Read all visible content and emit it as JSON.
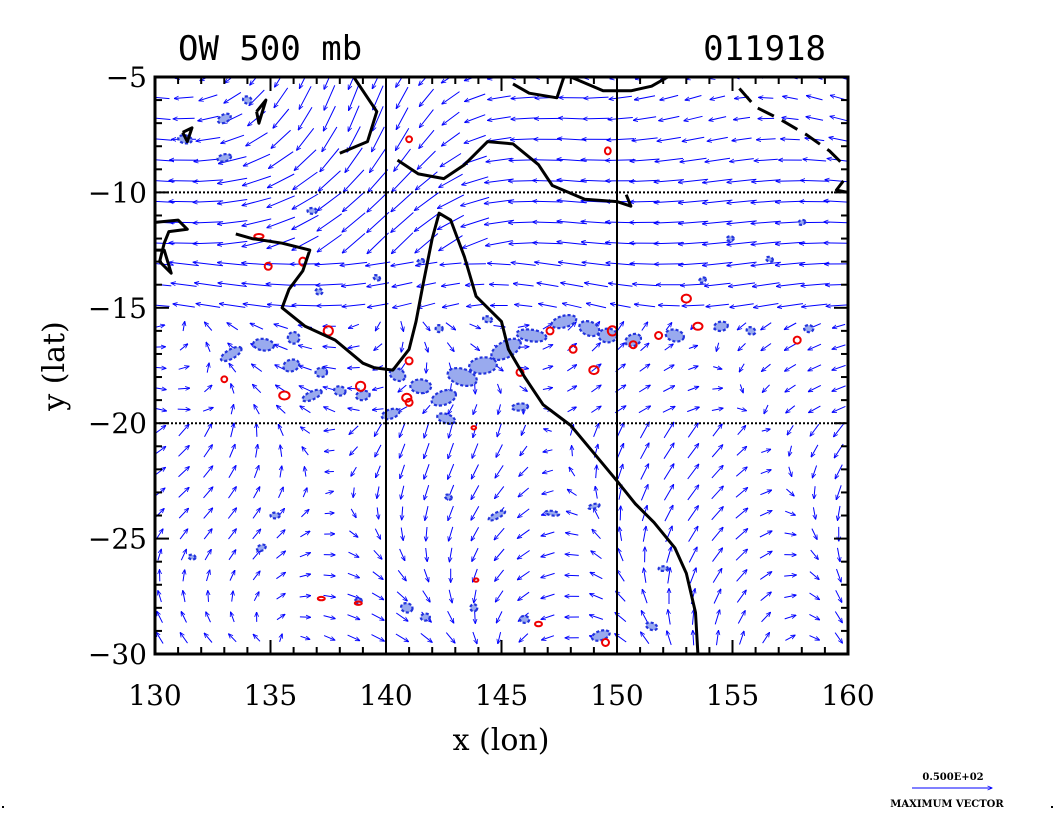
{
  "chart_data": {
    "type": "vector-contour-map",
    "title_left": "OW 500 mb",
    "title_right": "011918",
    "xlabel": "x (lon)",
    "ylabel": "y (lat)",
    "xlim": [
      130,
      160
    ],
    "ylim": [
      -30,
      -5
    ],
    "x_ticks": [
      130,
      135,
      140,
      145,
      150,
      155,
      160
    ],
    "y_ticks": [
      -5,
      -10,
      -15,
      -20,
      -25,
      -30
    ],
    "x_tick_labels": [
      "130",
      "135",
      "140",
      "145",
      "150",
      "155",
      "160"
    ],
    "y_tick_labels": [
      "−5",
      "−10",
      "−15",
      "−20",
      "−25",
      "−30"
    ],
    "grid_lines_x": [
      140,
      150
    ],
    "grid_lines_y": [
      -10,
      -20
    ],
    "legend": {
      "value_label": "0.500E+02",
      "label": "MAXIMUM VECTOR"
    },
    "colors": {
      "vectors": "#0000ff",
      "negative_contours": "#2233dd",
      "negative_fill": "#99aaee",
      "positive_contours": "#ee0000",
      "coast": "#000000"
    },
    "coastlines": [
      [
        [
          133.5,
          -11.8
        ],
        [
          134.2,
          -12.0
        ],
        [
          135.5,
          -12.2
        ],
        [
          136.7,
          -12.5
        ],
        [
          136.4,
          -13.4
        ],
        [
          135.8,
          -14.2
        ],
        [
          135.5,
          -15.0
        ],
        [
          136.5,
          -15.8
        ],
        [
          137.8,
          -16.4
        ],
        [
          139.0,
          -17.4
        ],
        [
          139.5,
          -17.6
        ],
        [
          140.3,
          -17.7
        ],
        [
          141.0,
          -16.8
        ],
        [
          141.3,
          -15.6
        ],
        [
          141.6,
          -14.0
        ],
        [
          142.0,
          -12.0
        ],
        [
          142.3,
          -10.9
        ],
        [
          142.8,
          -11.2
        ],
        [
          143.4,
          -12.8
        ],
        [
          143.9,
          -14.5
        ],
        [
          145.0,
          -15.6
        ],
        [
          145.3,
          -16.8
        ],
        [
          146.0,
          -18.0
        ],
        [
          146.8,
          -19.2
        ],
        [
          148.0,
          -20.1
        ],
        [
          149.0,
          -21.3
        ],
        [
          150.0,
          -22.5
        ],
        [
          150.8,
          -23.5
        ],
        [
          151.6,
          -24.3
        ],
        [
          152.5,
          -25.4
        ],
        [
          153.0,
          -26.5
        ],
        [
          153.4,
          -28.2
        ],
        [
          153.5,
          -30.0
        ]
      ],
      [
        [
          138.0,
          -8.3
        ],
        [
          139.2,
          -7.8
        ],
        [
          139.6,
          -6.5
        ],
        [
          138.6,
          -5.0
        ]
      ],
      [
        [
          140.5,
          -8.6
        ],
        [
          141.4,
          -9.2
        ],
        [
          142.5,
          -9.4
        ],
        [
          143.4,
          -8.8
        ],
        [
          144.4,
          -7.8
        ],
        [
          145.5,
          -7.9
        ],
        [
          146.6,
          -8.8
        ],
        [
          147.2,
          -9.7
        ],
        [
          148.6,
          -10.3
        ],
        [
          150.0,
          -10.4
        ],
        [
          150.6,
          -10.6
        ],
        [
          150.4,
          -10.1
        ]
      ],
      [
        [
          145.5,
          -5.3
        ],
        [
          146.2,
          -5.7
        ],
        [
          147.4,
          -5.9
        ],
        [
          147.7,
          -5.0
        ]
      ],
      [
        [
          148.0,
          -5.0
        ],
        [
          149.4,
          -5.6
        ],
        [
          150.6,
          -5.6
        ],
        [
          151.5,
          -5.4
        ],
        [
          152.2,
          -5.0
        ]
      ],
      [
        [
          130.0,
          -11.3
        ],
        [
          131.0,
          -11.2
        ],
        [
          131.4,
          -11.6
        ],
        [
          130.6,
          -11.7
        ],
        [
          130.4,
          -12.2
        ],
        [
          130.2,
          -13.0
        ],
        [
          130.7,
          -13.5
        ],
        [
          130.4,
          -12.5
        ],
        [
          130.0,
          -12.5
        ]
      ],
      [
        [
          134.4,
          -6.5
        ],
        [
          134.8,
          -6.0
        ],
        [
          134.5,
          -7.0
        ],
        [
          134.4,
          -6.5
        ]
      ],
      [
        [
          131.2,
          -7.4
        ],
        [
          131.6,
          -7.2
        ],
        [
          131.4,
          -7.8
        ],
        [
          131.2,
          -7.4
        ]
      ],
      [
        [
          159.8,
          -9.5
        ],
        [
          159.5,
          -9.9
        ],
        [
          160.0,
          -10.0
        ]
      ]
    ],
    "dashed_coastlines": [
      [
        [
          155.3,
          -5.5
        ],
        [
          156.0,
          -6.3
        ],
        [
          157.0,
          -6.8
        ],
        [
          158.2,
          -7.5
        ],
        [
          159.2,
          -8.2
        ],
        [
          159.8,
          -8.8
        ]
      ]
    ],
    "vorticity_blobs_negative": [
      [
        133.3,
        -17.0,
        1.0,
        0.4
      ],
      [
        134.7,
        -16.6,
        0.9,
        0.5
      ],
      [
        135.9,
        -17.5,
        0.7,
        0.5
      ],
      [
        136.0,
        -16.3,
        0.5,
        0.5
      ],
      [
        137.2,
        -17.8,
        0.5,
        0.4
      ],
      [
        136.8,
        -18.8,
        0.9,
        0.35
      ],
      [
        138.0,
        -18.6,
        0.5,
        0.4
      ],
      [
        139.0,
        -18.8,
        0.6,
        0.4
      ],
      [
        140.5,
        -17.9,
        0.7,
        0.5
      ],
      [
        141.5,
        -18.4,
        0.9,
        0.6
      ],
      [
        142.5,
        -18.9,
        1.1,
        0.6
      ],
      [
        143.3,
        -18.0,
        1.3,
        0.7
      ],
      [
        144.2,
        -17.5,
        1.2,
        0.7
      ],
      [
        145.2,
        -16.8,
        1.4,
        0.7
      ],
      [
        146.3,
        -16.2,
        1.3,
        0.5
      ],
      [
        147.7,
        -15.6,
        1.1,
        0.5
      ],
      [
        148.8,
        -15.9,
        0.9,
        0.6
      ],
      [
        149.6,
        -16.2,
        0.8,
        0.6
      ],
      [
        150.7,
        -16.4,
        0.7,
        0.5
      ],
      [
        152.5,
        -16.2,
        0.8,
        0.5
      ],
      [
        154.5,
        -15.8,
        0.6,
        0.4
      ],
      [
        155.8,
        -16.0,
        0.4,
        0.3
      ],
      [
        158.3,
        -15.9,
        0.4,
        0.3
      ],
      [
        140.2,
        -19.6,
        0.8,
        0.4
      ],
      [
        142.6,
        -19.8,
        0.8,
        0.4
      ],
      [
        145.8,
        -19.3,
        0.7,
        0.3
      ],
      [
        144.8,
        -24.0,
        0.8,
        0.25
      ],
      [
        147.2,
        -23.9,
        0.6,
        0.2
      ],
      [
        149.0,
        -23.6,
        0.5,
        0.2
      ],
      [
        142.7,
        -23.2,
        0.3,
        0.2
      ],
      [
        135.2,
        -24.0,
        0.4,
        0.25
      ],
      [
        134.6,
        -25.4,
        0.4,
        0.25
      ],
      [
        140.9,
        -28.0,
        0.5,
        0.4
      ],
      [
        141.7,
        -28.4,
        0.4,
        0.3
      ],
      [
        143.8,
        -28.0,
        0.3,
        0.3
      ],
      [
        146.0,
        -28.5,
        0.4,
        0.3
      ],
      [
        149.3,
        -29.2,
        0.8,
        0.4
      ],
      [
        151.5,
        -28.8,
        0.5,
        0.3
      ],
      [
        152.0,
        -26.3,
        0.4,
        0.2
      ],
      [
        133.0,
        -6.8,
        0.6,
        0.35
      ],
      [
        131.3,
        -7.7,
        0.6,
        0.35
      ],
      [
        133.0,
        -8.5,
        0.6,
        0.3
      ],
      [
        134.0,
        -6.0,
        0.4,
        0.3
      ],
      [
        136.8,
        -10.8,
        0.4,
        0.25
      ],
      [
        141.5,
        -13.0,
        0.3,
        0.2
      ],
      [
        144.4,
        -15.5,
        0.4,
        0.25
      ],
      [
        142.3,
        -15.9,
        0.3,
        0.3
      ],
      [
        139.6,
        -13.7,
        0.3,
        0.2
      ],
      [
        137.1,
        -14.3,
        0.3,
        0.25
      ],
      [
        158.0,
        -11.3,
        0.3,
        0.2
      ],
      [
        156.6,
        -12.9,
        0.3,
        0.2
      ],
      [
        154.9,
        -12.0,
        0.3,
        0.2
      ],
      [
        153.7,
        -13.8,
        0.3,
        0.2
      ],
      [
        131.6,
        -25.8,
        0.3,
        0.2
      ],
      [
        138.8,
        -27.7,
        0.3,
        0.2
      ]
    ],
    "vorticity_blobs_positive": [
      [
        134.5,
        -11.9,
        0.4,
        0.2
      ],
      [
        136.4,
        -13.0,
        0.3,
        0.35
      ],
      [
        134.9,
        -13.2,
        0.3,
        0.3
      ],
      [
        137.5,
        -16.0,
        0.4,
        0.4
      ],
      [
        133.0,
        -18.1,
        0.25,
        0.25
      ],
      [
        135.6,
        -18.8,
        0.45,
        0.35
      ],
      [
        138.9,
        -18.4,
        0.4,
        0.4
      ],
      [
        140.9,
        -18.9,
        0.4,
        0.35
      ],
      [
        141.0,
        -17.3,
        0.3,
        0.3
      ],
      [
        145.8,
        -17.8,
        0.3,
        0.3
      ],
      [
        147.1,
        -16.0,
        0.3,
        0.3
      ],
      [
        148.1,
        -16.8,
        0.3,
        0.3
      ],
      [
        149.0,
        -17.7,
        0.4,
        0.35
      ],
      [
        149.8,
        -16.0,
        0.4,
        0.4
      ],
      [
        150.7,
        -16.6,
        0.3,
        0.3
      ],
      [
        151.8,
        -16.2,
        0.3,
        0.3
      ],
      [
        153.0,
        -14.6,
        0.4,
        0.35
      ],
      [
        153.5,
        -15.8,
        0.4,
        0.3
      ],
      [
        157.8,
        -16.4,
        0.3,
        0.3
      ],
      [
        137.2,
        -27.6,
        0.3,
        0.15
      ],
      [
        138.8,
        -27.8,
        0.3,
        0.15
      ],
      [
        146.6,
        -28.7,
        0.3,
        0.2
      ],
      [
        149.5,
        -29.5,
        0.3,
        0.3
      ],
      [
        141.0,
        -7.7,
        0.25,
        0.25
      ],
      [
        149.6,
        -8.2,
        0.25,
        0.3
      ],
      [
        141.0,
        -19.1,
        0.3,
        0.3
      ],
      [
        143.8,
        -20.2,
        0.2,
        0.15
      ],
      [
        143.9,
        -26.8,
        0.2,
        0.15
      ]
    ]
  }
}
